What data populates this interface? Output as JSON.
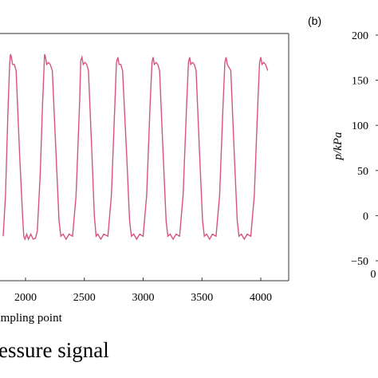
{
  "chart_data": [
    {
      "type": "line",
      "panel_label": "",
      "caption": "essure signal",
      "xlabel": "ampling point",
      "ylabel": "",
      "x_ticks": [
        "2000",
        "2500",
        "3000",
        "3500",
        "4000"
      ],
      "xlim": [
        1810,
        4170
      ],
      "ylim": [
        -20,
        200
      ],
      "grid": false,
      "series": [
        {
          "color": "#d6557a",
          "points": [
            [
              1810,
              0
            ],
            [
              1830,
              40
            ],
            [
              1850,
              120
            ],
            [
              1865,
              168
            ],
            [
              1872,
              178
            ],
            [
              1880,
              175
            ],
            [
              1890,
              168
            ],
            [
              1905,
              168
            ],
            [
              1920,
              162
            ],
            [
              1950,
              80
            ],
            [
              1975,
              20
            ],
            [
              1985,
              0
            ],
            [
              1995,
              -3
            ],
            [
              2010,
              2
            ],
            [
              2025,
              -3
            ],
            [
              2045,
              2
            ],
            [
              2065,
              -3
            ],
            [
              2085,
              -2
            ],
            [
              2100,
              5
            ],
            [
              2125,
              60
            ],
            [
              2145,
              130
            ],
            [
              2162,
              178
            ],
            [
              2170,
              175
            ],
            [
              2180,
              168
            ],
            [
              2195,
              170
            ],
            [
              2210,
              168
            ],
            [
              2228,
              162
            ],
            [
              2260,
              80
            ],
            [
              2285,
              15
            ],
            [
              2300,
              0
            ],
            [
              2320,
              2
            ],
            [
              2345,
              -3
            ],
            [
              2370,
              2
            ],
            [
              2400,
              0
            ],
            [
              2430,
              40
            ],
            [
              2460,
              130
            ],
            [
              2470,
              172
            ],
            [
              2480,
              175
            ],
            [
              2490,
              168
            ],
            [
              2505,
              170
            ],
            [
              2520,
              168
            ],
            [
              2535,
              162
            ],
            [
              2565,
              80
            ],
            [
              2585,
              20
            ],
            [
              2600,
              0
            ],
            [
              2615,
              2
            ],
            [
              2640,
              -3
            ],
            [
              2665,
              2
            ],
            [
              2700,
              0
            ],
            [
              2730,
              40
            ],
            [
              2760,
              130
            ],
            [
              2773,
              170
            ],
            [
              2785,
              175
            ],
            [
              2795,
              168
            ],
            [
              2810,
              168
            ],
            [
              2825,
              162
            ],
            [
              2860,
              80
            ],
            [
              2885,
              15
            ],
            [
              2900,
              0
            ],
            [
              2920,
              2
            ],
            [
              2945,
              -3
            ],
            [
              2970,
              2
            ],
            [
              3000,
              0
            ],
            [
              3030,
              40
            ],
            [
              3060,
              130
            ],
            [
              3075,
              170
            ],
            [
              3085,
              175
            ],
            [
              3095,
              168
            ],
            [
              3110,
              170
            ],
            [
              3125,
              168
            ],
            [
              3140,
              162
            ],
            [
              3170,
              80
            ],
            [
              3195,
              15
            ],
            [
              3210,
              0
            ],
            [
              3230,
              2
            ],
            [
              3255,
              -3
            ],
            [
              3280,
              2
            ],
            [
              3310,
              0
            ],
            [
              3340,
              40
            ],
            [
              3370,
              130
            ],
            [
              3385,
              170
            ],
            [
              3395,
              175
            ],
            [
              3405,
              168
            ],
            [
              3420,
              170
            ],
            [
              3435,
              168
            ],
            [
              3450,
              162
            ],
            [
              3480,
              80
            ],
            [
              3505,
              15
            ],
            [
              3520,
              0
            ],
            [
              3540,
              2
            ],
            [
              3565,
              -3
            ],
            [
              3590,
              2
            ],
            [
              3620,
              0
            ],
            [
              3650,
              40
            ],
            [
              3680,
              130
            ],
            [
              3695,
              170
            ],
            [
              3705,
              175
            ],
            [
              3715,
              168
            ],
            [
              3730,
              165
            ],
            [
              3745,
              162
            ],
            [
              3775,
              80
            ],
            [
              3800,
              15
            ],
            [
              3815,
              0
            ],
            [
              3835,
              2
            ],
            [
              3860,
              -3
            ],
            [
              3885,
              2
            ],
            [
              3915,
              0
            ],
            [
              3945,
              40
            ],
            [
              3975,
              130
            ],
            [
              3990,
              170
            ],
            [
              4000,
              175
            ],
            [
              4010,
              168
            ],
            [
              4025,
              170
            ],
            [
              4040,
              168
            ],
            [
              4060,
              162
            ]
          ]
        }
      ]
    },
    {
      "type": "line",
      "panel_label": "(b)",
      "xlabel": "",
      "ylabel": "p/kPa",
      "y_ticks": [
        "200",
        "150",
        "100",
        "50",
        "0",
        "−50"
      ],
      "x_ticks": [
        "0"
      ],
      "ylim": [
        -50,
        200
      ],
      "grid": false,
      "series": []
    }
  ]
}
